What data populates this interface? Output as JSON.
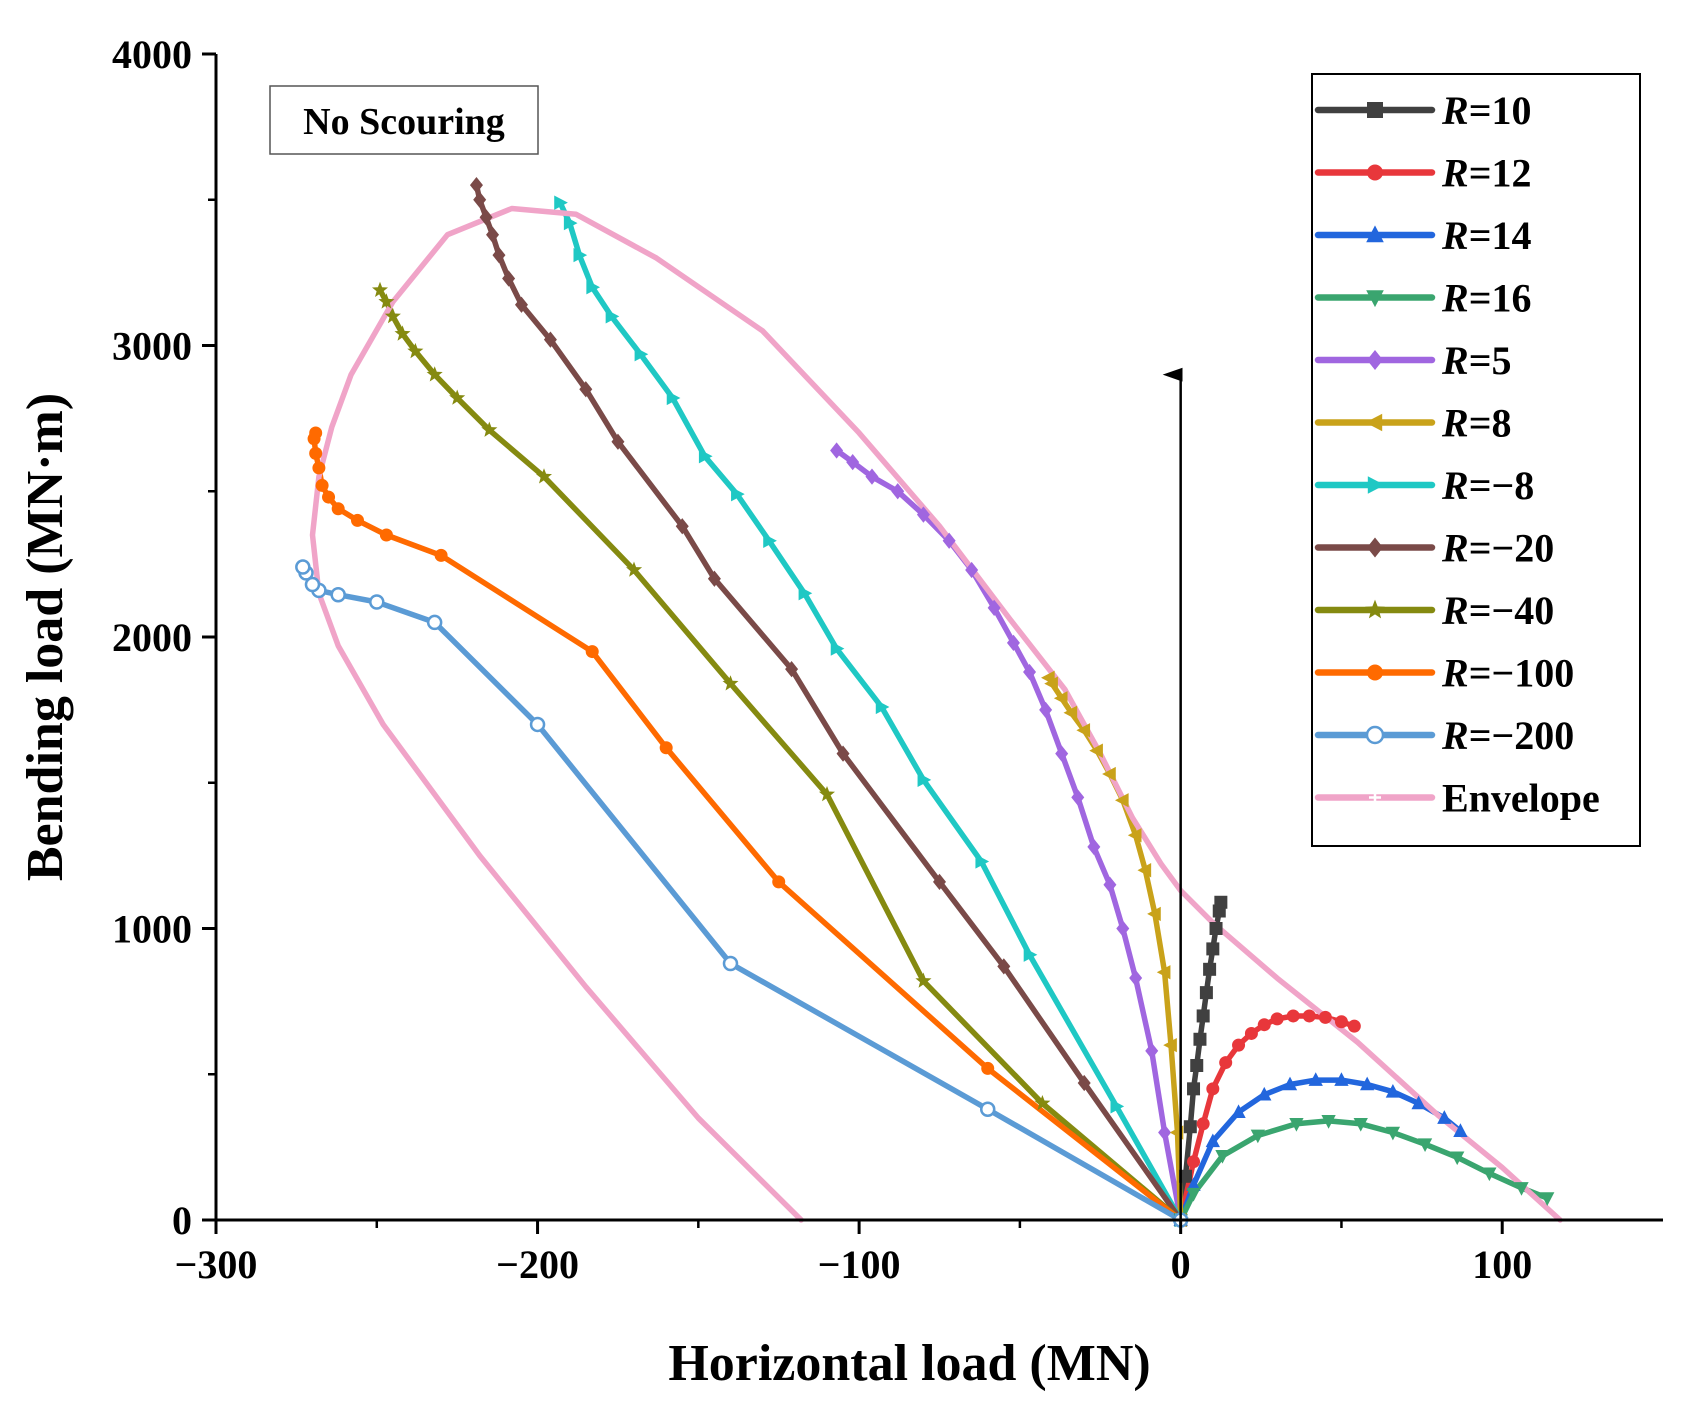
{
  "chart_data": {
    "type": "line",
    "xlabel": "Horizontal load (MN)",
    "ylabel": "Bending load (MN·m)",
    "xlim": [
      -300,
      150
    ],
    "ylim": [
      0,
      4000
    ],
    "x_ticks": [
      -300,
      -200,
      -100,
      0,
      100
    ],
    "y_ticks": [
      0,
      1000,
      2000,
      3000,
      4000
    ],
    "x_tick_labels": [
      "−300",
      "−200",
      "−100",
      "0",
      "100"
    ],
    "y_tick_labels": [
      "0",
      "1000",
      "2000",
      "3000",
      "4000"
    ],
    "annotation": "No Scouring",
    "legend_position": "top-right",
    "arrow": {
      "from": [
        0,
        0
      ],
      "to": [
        0,
        2900
      ]
    },
    "series": [
      {
        "name": "R=10",
        "r_value": "10",
        "color": "#404040",
        "marker": "square",
        "points": [
          [
            0,
            0
          ],
          [
            1.5,
            150
          ],
          [
            3,
            320
          ],
          [
            4,
            450
          ],
          [
            5,
            530
          ],
          [
            6,
            620
          ],
          [
            7,
            700
          ],
          [
            8,
            780
          ],
          [
            9,
            860
          ],
          [
            10,
            930
          ],
          [
            11,
            1000
          ],
          [
            12,
            1060
          ],
          [
            12.5,
            1090
          ]
        ]
      },
      {
        "name": "R=12",
        "r_value": "12",
        "color": "#e8373b",
        "marker": "circle",
        "points": [
          [
            0,
            0
          ],
          [
            4,
            200
          ],
          [
            7,
            330
          ],
          [
            10,
            450
          ],
          [
            14,
            540
          ],
          [
            18,
            600
          ],
          [
            22,
            640
          ],
          [
            26,
            670
          ],
          [
            30,
            690
          ],
          [
            35,
            700
          ],
          [
            40,
            700
          ],
          [
            45,
            695
          ],
          [
            50,
            680
          ],
          [
            54,
            665
          ]
        ]
      },
      {
        "name": "R=14",
        "r_value": "14",
        "color": "#2266dd",
        "marker": "triangle-up",
        "points": [
          [
            0,
            0
          ],
          [
            4,
            120
          ],
          [
            10,
            270
          ],
          [
            18,
            370
          ],
          [
            26,
            430
          ],
          [
            34,
            465
          ],
          [
            42,
            480
          ],
          [
            50,
            480
          ],
          [
            58,
            465
          ],
          [
            66,
            440
          ],
          [
            74,
            400
          ],
          [
            82,
            350
          ],
          [
            87,
            305
          ]
        ]
      },
      {
        "name": "R=16",
        "r_value": "16",
        "color": "#3aa56f",
        "marker": "triangle-down",
        "points": [
          [
            0,
            0
          ],
          [
            4,
            90
          ],
          [
            13,
            220
          ],
          [
            24,
            290
          ],
          [
            36,
            330
          ],
          [
            46,
            340
          ],
          [
            56,
            330
          ],
          [
            66,
            300
          ],
          [
            76,
            260
          ],
          [
            86,
            215
          ],
          [
            96,
            160
          ],
          [
            106,
            110
          ],
          [
            114,
            75
          ]
        ]
      },
      {
        "name": "R=5",
        "r_value": "5",
        "color": "#a066e0",
        "marker": "diamond",
        "points": [
          [
            0,
            0
          ],
          [
            -5,
            300
          ],
          [
            -9,
            580
          ],
          [
            -14,
            830
          ],
          [
            -18,
            1000
          ],
          [
            -22,
            1150
          ],
          [
            -27,
            1280
          ],
          [
            -32,
            1450
          ],
          [
            -37,
            1600
          ],
          [
            -42,
            1750
          ],
          [
            -47,
            1880
          ],
          [
            -52,
            1980
          ],
          [
            -58,
            2100
          ],
          [
            -65,
            2230
          ],
          [
            -72,
            2330
          ],
          [
            -80,
            2420
          ],
          [
            -88,
            2500
          ],
          [
            -96,
            2550
          ],
          [
            -102,
            2600
          ],
          [
            -107,
            2640
          ]
        ]
      },
      {
        "name": "R=8",
        "r_value": "8",
        "color": "#c9a21a",
        "marker": "triangle-left",
        "points": [
          [
            0,
            0
          ],
          [
            -1,
            300
          ],
          [
            -3,
            600
          ],
          [
            -5,
            850
          ],
          [
            -8,
            1050
          ],
          [
            -11,
            1200
          ],
          [
            -14,
            1320
          ],
          [
            -18,
            1440
          ],
          [
            -22,
            1530
          ],
          [
            -26,
            1610
          ],
          [
            -30,
            1680
          ],
          [
            -34,
            1740
          ],
          [
            -37,
            1790
          ],
          [
            -40,
            1840
          ],
          [
            -41,
            1860
          ]
        ]
      },
      {
        "name": "R=−8",
        "r_value": "−8",
        "color": "#1fc8c4",
        "marker": "triangle-right",
        "points": [
          [
            0,
            0
          ],
          [
            -20,
            390
          ],
          [
            -47,
            910
          ],
          [
            -62,
            1230
          ],
          [
            -80,
            1510
          ],
          [
            -93,
            1760
          ],
          [
            -107,
            1960
          ],
          [
            -117,
            2150
          ],
          [
            -128,
            2330
          ],
          [
            -138,
            2490
          ],
          [
            -148,
            2620
          ],
          [
            -158,
            2820
          ],
          [
            -168,
            2970
          ],
          [
            -177,
            3100
          ],
          [
            -183,
            3200
          ],
          [
            -187,
            3310
          ],
          [
            -190,
            3420
          ],
          [
            -193,
            3490
          ]
        ]
      },
      {
        "name": "R=−20",
        "r_value": "−20",
        "color": "#7a4a48",
        "marker": "diamond",
        "points": [
          [
            0,
            0
          ],
          [
            -30,
            470
          ],
          [
            -55,
            870
          ],
          [
            -75,
            1160
          ],
          [
            -105,
            1600
          ],
          [
            -121,
            1890
          ],
          [
            -145,
            2200
          ],
          [
            -155,
            2380
          ],
          [
            -175,
            2670
          ],
          [
            -185,
            2850
          ],
          [
            -196,
            3020
          ],
          [
            -205,
            3140
          ],
          [
            -209,
            3230
          ],
          [
            -212,
            3310
          ],
          [
            -214,
            3380
          ],
          [
            -216,
            3440
          ],
          [
            -218,
            3500
          ],
          [
            -219,
            3550
          ]
        ]
      },
      {
        "name": "R=−40",
        "r_value": "−40",
        "color": "#858a10",
        "marker": "star",
        "points": [
          [
            0,
            0
          ],
          [
            -43,
            400
          ],
          [
            -80,
            820
          ],
          [
            -110,
            1460
          ],
          [
            -140,
            1840
          ],
          [
            -170,
            2230
          ],
          [
            -198,
            2550
          ],
          [
            -215,
            2710
          ],
          [
            -225,
            2820
          ],
          [
            -232,
            2900
          ],
          [
            -238,
            2980
          ],
          [
            -242,
            3040
          ],
          [
            -245,
            3100
          ],
          [
            -247,
            3150
          ],
          [
            -249,
            3190
          ]
        ]
      },
      {
        "name": "R=−100",
        "r_value": "−100",
        "color": "#ff6a00",
        "marker": "circle",
        "points": [
          [
            0,
            0
          ],
          [
            -60,
            520
          ],
          [
            -125,
            1160
          ],
          [
            -160,
            1620
          ],
          [
            -183,
            1950
          ],
          [
            -230,
            2280
          ],
          [
            -247,
            2350
          ],
          [
            -256,
            2400
          ],
          [
            -262,
            2440
          ],
          [
            -265,
            2480
          ],
          [
            -267,
            2520
          ],
          [
            -268,
            2580
          ],
          [
            -269,
            2630
          ],
          [
            -269.5,
            2680
          ],
          [
            -269,
            2700
          ]
        ]
      },
      {
        "name": "R=−200",
        "r_value": "−200",
        "color": "#5b9bd5",
        "marker": "circle-open",
        "points": [
          [
            0,
            0
          ],
          [
            -60,
            380
          ],
          [
            -140,
            880
          ],
          [
            -200,
            1700
          ],
          [
            -232,
            2050
          ],
          [
            -250,
            2120
          ],
          [
            -262,
            2145
          ],
          [
            -268,
            2160
          ],
          [
            -270,
            2180
          ],
          [
            -272,
            2220
          ],
          [
            -273,
            2240
          ]
        ]
      },
      {
        "name": "Envelope",
        "r_value": "",
        "color": "#f0a4c8",
        "marker": "plus",
        "points": [
          [
            -118,
            0
          ],
          [
            -150,
            350
          ],
          [
            -185,
            800
          ],
          [
            -218,
            1250
          ],
          [
            -248,
            1700
          ],
          [
            -262,
            1970
          ],
          [
            -268,
            2150
          ],
          [
            -270,
            2350
          ],
          [
            -268,
            2550
          ],
          [
            -264,
            2720
          ],
          [
            -258,
            2900
          ],
          [
            -245,
            3150
          ],
          [
            -228,
            3380
          ],
          [
            -208,
            3470
          ],
          [
            -188,
            3450
          ],
          [
            -163,
            3300
          ],
          [
            -130,
            3050
          ],
          [
            -100,
            2700
          ],
          [
            -75,
            2380
          ],
          [
            -53,
            2060
          ],
          [
            -36,
            1820
          ],
          [
            -25,
            1600
          ],
          [
            -15,
            1380
          ],
          [
            -6,
            1220
          ],
          [
            0,
            1130
          ],
          [
            10,
            1020
          ],
          [
            30,
            830
          ],
          [
            55,
            610
          ],
          [
            80,
            360
          ],
          [
            100,
            180
          ],
          [
            118,
            0
          ]
        ]
      }
    ]
  }
}
